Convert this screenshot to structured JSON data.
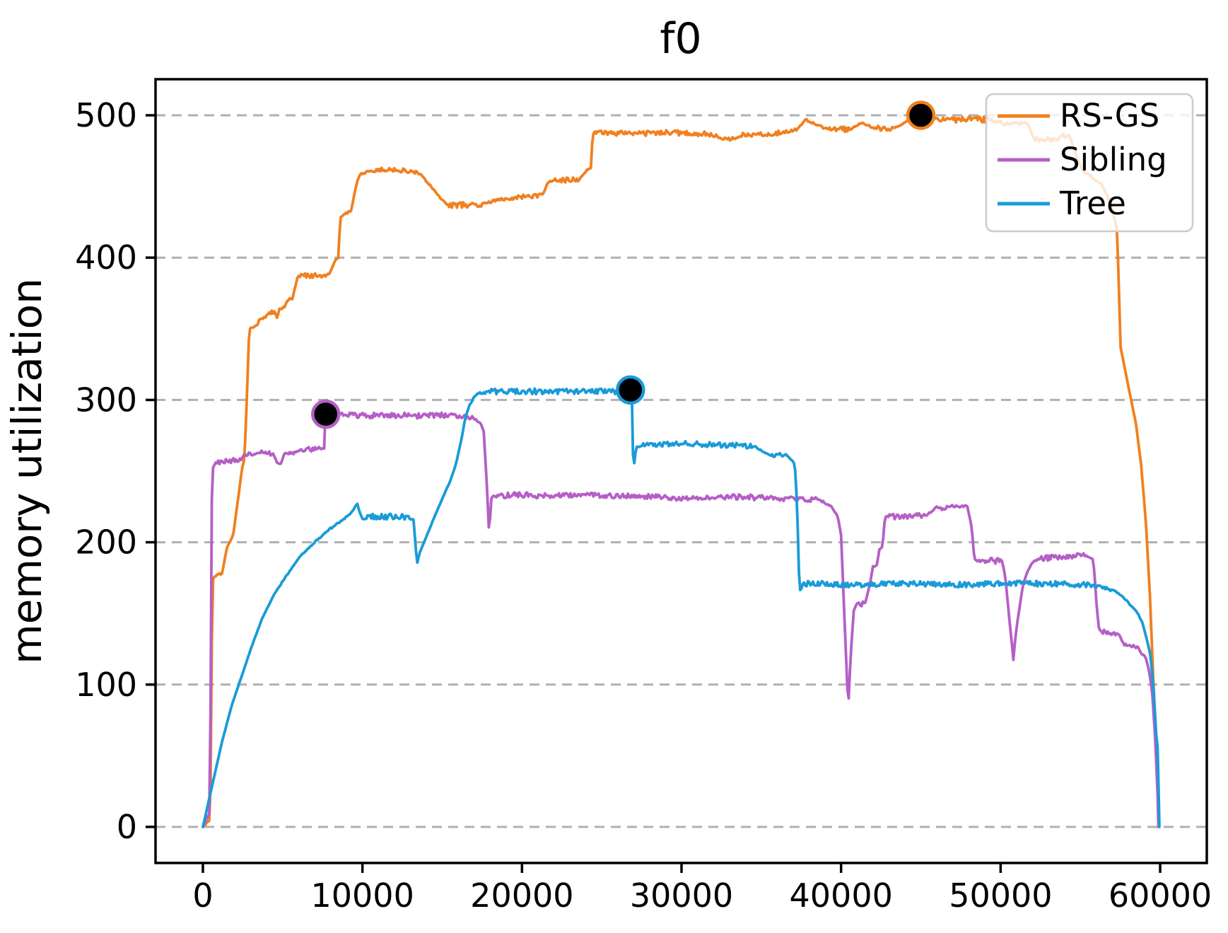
{
  "title": "f0",
  "axes": {
    "ylabel": "memory utilization",
    "xlabel": ""
  },
  "legend": {
    "entries": [
      {
        "label": "RS-GS",
        "color": "#f1801f"
      },
      {
        "label": "Sibling",
        "color": "#b55fc6"
      },
      {
        "label": "Tree",
        "color": "#1a9bd8"
      }
    ]
  },
  "colors": {
    "grid": "#b0b0b0",
    "spine": "#000000",
    "marker_fill": "#000000",
    "legend_border": "#cccccc"
  },
  "chart_data": {
    "type": "line",
    "title": "f0",
    "xlabel": "",
    "ylabel": "memory utilization",
    "x_ticks": [
      0,
      10000,
      20000,
      30000,
      40000,
      50000,
      60000
    ],
    "y_ticks": [
      0,
      100,
      200,
      300,
      400,
      500
    ],
    "xlim": [
      -2969,
      62923
    ],
    "ylim": [
      -25.35,
      525.35
    ],
    "grid": {
      "axis": "y",
      "style": "dashed"
    },
    "legend_position": "upper right",
    "series": [
      {
        "name": "RS-GS",
        "color": "#f1801f",
        "noise": 2.0,
        "points": [
          [
            0,
            0
          ],
          [
            450,
            5
          ],
          [
            520,
            60
          ],
          [
            560,
            130
          ],
          [
            590,
            172
          ],
          [
            700,
            176
          ],
          [
            1200,
            178
          ],
          [
            1500,
            196
          ],
          [
            1900,
            205
          ],
          [
            2200,
            230
          ],
          [
            2450,
            252
          ],
          [
            2600,
            258
          ],
          [
            2750,
            300
          ],
          [
            2900,
            349
          ],
          [
            3000,
            351
          ],
          [
            3400,
            352
          ],
          [
            3550,
            357
          ],
          [
            3900,
            358
          ],
          [
            4100,
            361
          ],
          [
            4500,
            362
          ],
          [
            4650,
            357
          ],
          [
            4800,
            364
          ],
          [
            5100,
            365
          ],
          [
            5300,
            370
          ],
          [
            5600,
            371
          ],
          [
            5800,
            380
          ],
          [
            5950,
            387
          ],
          [
            7900,
            388
          ],
          [
            8100,
            393
          ],
          [
            8300,
            398
          ],
          [
            8500,
            400
          ],
          [
            8600,
            428
          ],
          [
            8800,
            430
          ],
          [
            9300,
            433
          ],
          [
            9500,
            445
          ],
          [
            9700,
            455
          ],
          [
            9900,
            459
          ],
          [
            10500,
            461
          ],
          [
            12000,
            462
          ],
          [
            12700,
            461
          ],
          [
            13600,
            459
          ],
          [
            13900,
            455
          ],
          [
            14300,
            450
          ],
          [
            14800,
            443
          ],
          [
            15300,
            437
          ],
          [
            17400,
            437
          ],
          [
            18300,
            440
          ],
          [
            19200,
            442
          ],
          [
            20400,
            443
          ],
          [
            21300,
            444
          ],
          [
            21600,
            452
          ],
          [
            21800,
            454
          ],
          [
            23600,
            455
          ],
          [
            23900,
            459
          ],
          [
            24100,
            462
          ],
          [
            24350,
            463
          ],
          [
            24420,
            487
          ],
          [
            25000,
            488
          ],
          [
            27000,
            487
          ],
          [
            29000,
            488
          ],
          [
            31500,
            487
          ],
          [
            32300,
            485
          ],
          [
            32800,
            483
          ],
          [
            33300,
            484
          ],
          [
            33700,
            486
          ],
          [
            35500,
            487
          ],
          [
            36500,
            488
          ],
          [
            37200,
            490
          ],
          [
            37800,
            497
          ],
          [
            38200,
            495
          ],
          [
            38800,
            492
          ],
          [
            39600,
            490
          ],
          [
            40600,
            490
          ],
          [
            40900,
            493
          ],
          [
            41700,
            493
          ],
          [
            41900,
            491
          ],
          [
            43400,
            491
          ],
          [
            43800,
            494
          ],
          [
            44300,
            497
          ],
          [
            44600,
            498
          ],
          [
            45000,
            500
          ],
          [
            45600,
            498
          ],
          [
            46800,
            497
          ],
          [
            48000,
            497
          ],
          [
            49300,
            497
          ],
          [
            49800,
            495
          ],
          [
            50600,
            494
          ],
          [
            51200,
            495
          ],
          [
            51700,
            494
          ],
          [
            52100,
            483
          ],
          [
            53600,
            483
          ],
          [
            53800,
            486
          ],
          [
            54300,
            486
          ],
          [
            54700,
            473
          ],
          [
            55100,
            462
          ],
          [
            55300,
            460
          ],
          [
            56300,
            452
          ],
          [
            56630,
            445
          ],
          [
            57000,
            434
          ],
          [
            57160,
            426
          ],
          [
            57300,
            420
          ],
          [
            57520,
            337
          ],
          [
            58000,
            310
          ],
          [
            58490,
            283
          ],
          [
            58800,
            255
          ],
          [
            59100,
            215
          ],
          [
            59370,
            160
          ],
          [
            59510,
            120
          ],
          [
            59700,
            70
          ],
          [
            59900,
            10
          ],
          [
            59930,
            0
          ]
        ]
      },
      {
        "name": "Sibling",
        "color": "#b55fc6",
        "noise": 2.0,
        "points": [
          [
            0,
            0
          ],
          [
            430,
            10
          ],
          [
            480,
            80
          ],
          [
            520,
            160
          ],
          [
            560,
            230
          ],
          [
            620,
            252
          ],
          [
            800,
            256
          ],
          [
            1500,
            257
          ],
          [
            2400,
            258
          ],
          [
            2600,
            262
          ],
          [
            3500,
            263
          ],
          [
            4400,
            262
          ],
          [
            4700,
            255
          ],
          [
            4900,
            255
          ],
          [
            5100,
            262
          ],
          [
            5500,
            262
          ],
          [
            6300,
            265
          ],
          [
            7500,
            266
          ],
          [
            7620,
            266
          ],
          [
            7660,
            290
          ],
          [
            9000,
            289
          ],
          [
            12000,
            289
          ],
          [
            15500,
            289
          ],
          [
            16300,
            288
          ],
          [
            17000,
            287
          ],
          [
            17400,
            284
          ],
          [
            17600,
            278
          ],
          [
            17800,
            240
          ],
          [
            17950,
            203
          ],
          [
            18050,
            230
          ],
          [
            18200,
            233
          ],
          [
            20000,
            233
          ],
          [
            24000,
            233
          ],
          [
            28000,
            232
          ],
          [
            30000,
            231
          ],
          [
            33000,
            232
          ],
          [
            36000,
            231
          ],
          [
            38500,
            230
          ],
          [
            39000,
            228
          ],
          [
            39400,
            225
          ],
          [
            39800,
            218
          ],
          [
            40000,
            205
          ],
          [
            40200,
            150
          ],
          [
            40450,
            83
          ],
          [
            40600,
            120
          ],
          [
            40800,
            152
          ],
          [
            41000,
            157
          ],
          [
            41500,
            157
          ],
          [
            41800,
            170
          ],
          [
            42000,
            183
          ],
          [
            42250,
            184
          ],
          [
            42400,
            195
          ],
          [
            42600,
            197
          ],
          [
            42750,
            218
          ],
          [
            43500,
            218
          ],
          [
            45300,
            219
          ],
          [
            45700,
            222
          ],
          [
            46000,
            225
          ],
          [
            46300,
            224
          ],
          [
            47900,
            226
          ],
          [
            48200,
            210
          ],
          [
            48350,
            188
          ],
          [
            48700,
            187
          ],
          [
            50100,
            187
          ],
          [
            50300,
            175
          ],
          [
            50600,
            140
          ],
          [
            50800,
            119
          ],
          [
            51000,
            140
          ],
          [
            51400,
            170
          ],
          [
            51700,
            180
          ],
          [
            52000,
            186
          ],
          [
            52500,
            189
          ],
          [
            53500,
            189
          ],
          [
            54500,
            190
          ],
          [
            55000,
            192
          ],
          [
            55400,
            191
          ],
          [
            55800,
            188
          ],
          [
            55900,
            175
          ],
          [
            56000,
            158
          ],
          [
            56150,
            140
          ],
          [
            56300,
            137
          ],
          [
            57400,
            136
          ],
          [
            57600,
            131
          ],
          [
            57750,
            128
          ],
          [
            58600,
            127
          ],
          [
            58800,
            122
          ],
          [
            59100,
            119
          ],
          [
            59300,
            110
          ],
          [
            59500,
            95
          ],
          [
            59700,
            60
          ],
          [
            59850,
            20
          ],
          [
            59890,
            0
          ]
        ]
      },
      {
        "name": "Tree",
        "color": "#1a9bd8",
        "noise": 2.0,
        "points": [
          [
            0,
            0
          ],
          [
            300,
            15
          ],
          [
            700,
            35
          ],
          [
            1200,
            60
          ],
          [
            1800,
            85
          ],
          [
            2400,
            105
          ],
          [
            3000,
            125
          ],
          [
            3700,
            146
          ],
          [
            4400,
            162
          ],
          [
            5200,
            176
          ],
          [
            6100,
            190
          ],
          [
            7000,
            200
          ],
          [
            7900,
            209
          ],
          [
            8800,
            216
          ],
          [
            9400,
            222
          ],
          [
            9650,
            228
          ],
          [
            9800,
            222
          ],
          [
            9970,
            217
          ],
          [
            10400,
            218
          ],
          [
            11500,
            218
          ],
          [
            12800,
            218
          ],
          [
            13200,
            216
          ],
          [
            13420,
            185
          ],
          [
            13600,
            193
          ],
          [
            13870,
            200
          ],
          [
            14400,
            215
          ],
          [
            14980,
            230
          ],
          [
            15500,
            243
          ],
          [
            15860,
            255
          ],
          [
            16200,
            272
          ],
          [
            16440,
            287
          ],
          [
            16700,
            296
          ],
          [
            17000,
            302
          ],
          [
            17280,
            305
          ],
          [
            18000,
            306
          ],
          [
            20000,
            306
          ],
          [
            23000,
            306
          ],
          [
            26000,
            306
          ],
          [
            26800,
            307
          ],
          [
            26900,
            307
          ],
          [
            26950,
            262
          ],
          [
            27050,
            255
          ],
          [
            27150,
            267
          ],
          [
            27400,
            268
          ],
          [
            29000,
            269
          ],
          [
            31000,
            269
          ],
          [
            33000,
            268
          ],
          [
            34500,
            268
          ],
          [
            35100,
            264
          ],
          [
            35500,
            262
          ],
          [
            36500,
            262
          ],
          [
            37100,
            255
          ],
          [
            37250,
            225
          ],
          [
            37350,
            180
          ],
          [
            37450,
            165
          ],
          [
            37600,
            171
          ],
          [
            38500,
            171
          ],
          [
            41000,
            170
          ],
          [
            44000,
            171
          ],
          [
            47000,
            170
          ],
          [
            50000,
            171
          ],
          [
            53000,
            171
          ],
          [
            55500,
            170
          ],
          [
            56500,
            168
          ],
          [
            57300,
            165
          ],
          [
            57800,
            160
          ],
          [
            58300,
            154
          ],
          [
            58600,
            150
          ],
          [
            58900,
            143
          ],
          [
            59200,
            130
          ],
          [
            59400,
            120
          ],
          [
            59600,
            95
          ],
          [
            59750,
            65
          ],
          [
            59850,
            55
          ],
          [
            59900,
            30
          ],
          [
            59950,
            0
          ]
        ]
      }
    ],
    "markers": [
      {
        "series": "RS-GS",
        "x": 45000,
        "y": 500,
        "color": "#f1801f"
      },
      {
        "series": "Sibling",
        "x": 7700,
        "y": 290,
        "color": "#b55fc6"
      },
      {
        "series": "Tree",
        "x": 26800,
        "y": 307,
        "color": "#1a9bd8"
      }
    ]
  }
}
